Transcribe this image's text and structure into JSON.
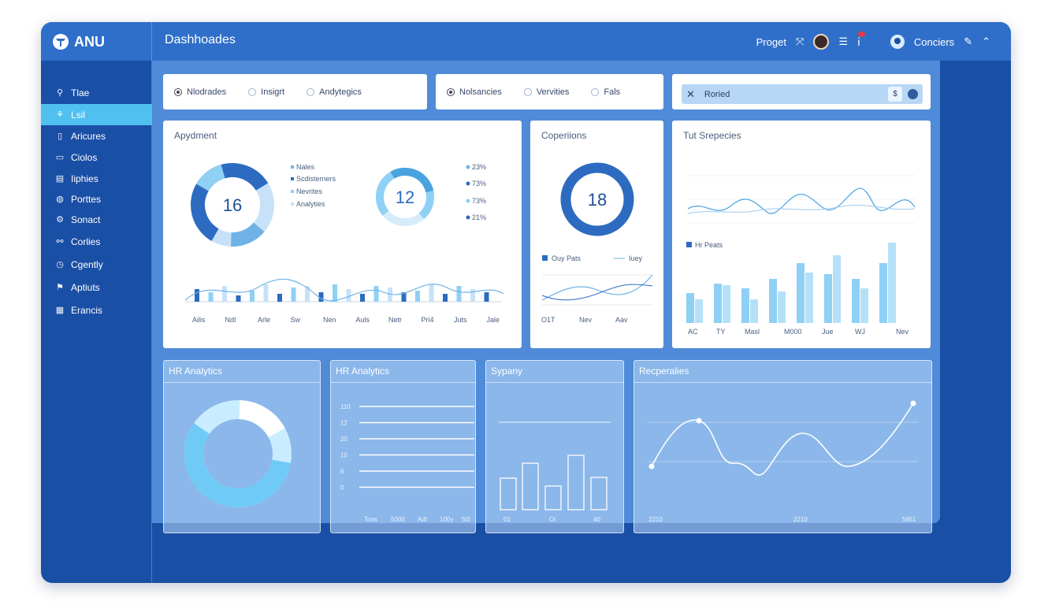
{
  "brand": {
    "name": "ANU"
  },
  "topbar": {
    "title": "Dashhoades",
    "project_label": "Proget",
    "user_label": "Conciers"
  },
  "sidebar": {
    "items": [
      {
        "label": "Tlae",
        "icon": "search-icon"
      },
      {
        "label": "Lsil",
        "icon": "user-icon"
      },
      {
        "label": "Aricures",
        "icon": "document-icon"
      },
      {
        "label": "Ciolos",
        "icon": "folder-icon"
      },
      {
        "label": "Iiphies",
        "icon": "chart-icon"
      },
      {
        "label": "Porttes",
        "icon": "globe-icon"
      },
      {
        "label": "Sonact",
        "icon": "gear-icon"
      },
      {
        "label": "Corlies",
        "icon": "link-icon"
      },
      {
        "label": "Cgently",
        "icon": "clock-icon"
      },
      {
        "label": "Aptiuts",
        "icon": "bookmark-icon"
      },
      {
        "label": "Erancis",
        "icon": "grid-icon"
      }
    ]
  },
  "tabs_a": [
    "Nlodrades",
    "Insigrt",
    "Andytegics"
  ],
  "tabs_b": [
    "Nolsancies",
    "Vervities",
    "Fals"
  ],
  "search": {
    "value": "Roried",
    "badge": "$"
  },
  "card_appyment": {
    "title": "Apydment",
    "donut1": {
      "value": "16"
    },
    "legend1": [
      "Nales",
      "Scdisterners",
      "Nevrites",
      "Analyties"
    ],
    "donut2": {
      "value": "12"
    },
    "legend2": [
      "23%",
      "73%",
      "73%",
      "21%"
    ],
    "months": [
      "Ailis",
      "NdI",
      "Arle",
      "Sw",
      "Nen",
      "Auls",
      "Netr",
      "Pri4",
      "Juts",
      "Jale"
    ]
  },
  "card_coperations": {
    "title": "Coperiions",
    "donut": {
      "value": "18"
    },
    "legend": [
      "Ouy Pats",
      "Iuey"
    ],
    "xlabels": [
      "O1T",
      "Nev",
      "Aav"
    ]
  },
  "card_srepecies": {
    "title": "Tut Srepecies",
    "legend": "Hr Peats",
    "xlabels": [
      "AC",
      "TY",
      "Masl",
      "M000",
      "Jue",
      "WJ",
      "Nev"
    ]
  },
  "panels": {
    "hr1": {
      "title": "HR Analytics"
    },
    "hr2": {
      "title": "HR Analytics",
      "ylabels": [
        "110",
        "12",
        "20",
        "10",
        "6",
        "0"
      ],
      "xlabels": [
        "Tons",
        "5000",
        "AdI",
        "100y",
        "5l3"
      ]
    },
    "syp": {
      "title": "Sypany",
      "xlabels": [
        "01",
        "Oi",
        "40"
      ]
    },
    "rep": {
      "title": "Recperalies",
      "xlabels": [
        "2210",
        "2210",
        "5651"
      ]
    }
  },
  "colors": {
    "accent": "#2f6fc9",
    "navy": "#1a4fa6",
    "chart_dark": "#2c6bc0",
    "chart_light": "#8fd0f5"
  }
}
